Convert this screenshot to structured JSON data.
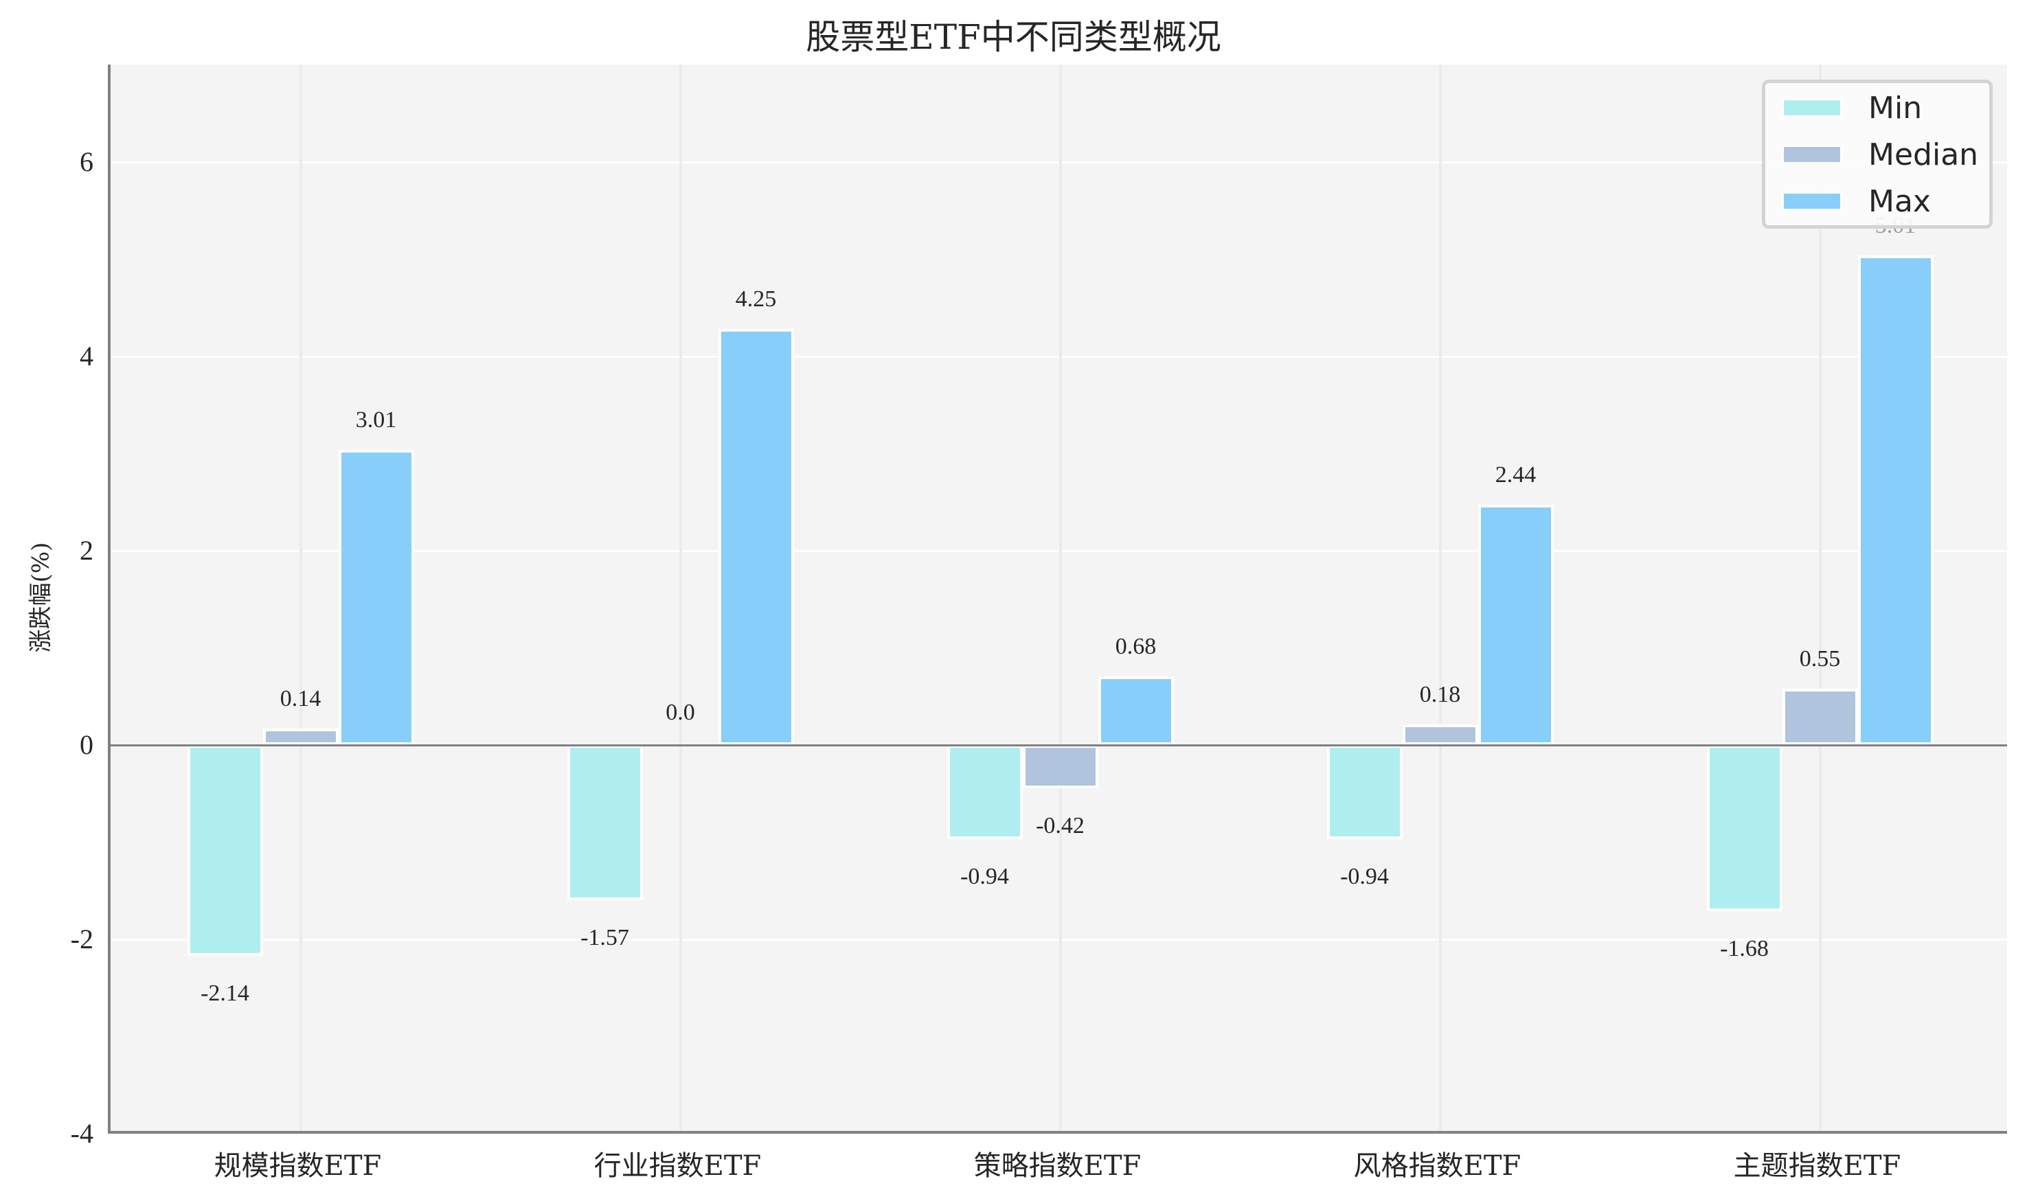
{
  "chart_data": {
    "type": "bar",
    "title": "股票型ETF中不同类型概况",
    "xlabel": "",
    "ylabel": "涨跌幅(%)",
    "ylim": [
      -4,
      7
    ],
    "yticks": [
      -4,
      -2,
      0,
      2,
      4,
      6
    ],
    "grid": true,
    "legend_position": "upper right",
    "categories": [
      "规模指数ETF",
      "行业指数ETF",
      "策略指数ETF",
      "风格指数ETF",
      "主题指数ETF"
    ],
    "series": [
      {
        "name": "Min",
        "color": "#afeeee",
        "values": [
          -2.14,
          -1.57,
          -0.94,
          -0.94,
          -1.68
        ]
      },
      {
        "name": "Median",
        "color": "#b0c4de",
        "values": [
          0.14,
          0.0,
          -0.42,
          0.18,
          0.55
        ]
      },
      {
        "name": "Max",
        "color": "#87cefa",
        "values": [
          3.01,
          4.25,
          0.68,
          2.44,
          5.01
        ]
      }
    ],
    "value_labels": [
      [
        "-2.14",
        "0.14",
        "3.01"
      ],
      [
        "-1.57",
        "0.0",
        "4.25"
      ],
      [
        "-0.94",
        "-0.42",
        "0.68"
      ],
      [
        "-0.94",
        "0.18",
        "2.44"
      ],
      [
        "-1.68",
        "0.55",
        "5.01"
      ]
    ]
  },
  "yticks_labels": [
    "6",
    "4",
    "2",
    "0",
    "-2",
    "-4"
  ],
  "legend": [
    {
      "label": "Min",
      "color": "#afeeee"
    },
    {
      "label": "Median",
      "color": "#b0c4de"
    },
    {
      "label": "Max",
      "color": "#87cefa"
    }
  ]
}
